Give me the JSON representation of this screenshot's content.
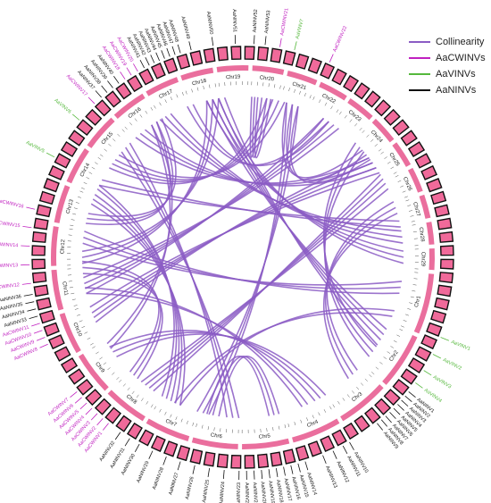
{
  "colors": {
    "collinearity": "#8b5cc4",
    "cwinv": "#c020c0",
    "vinv": "#55b83c",
    "ninv": "#111111",
    "chr_band": "#ea6e9d",
    "tile_fill": "#f06a9a",
    "tile_stroke": "#111111"
  },
  "legend": [
    {
      "label": "Collinearity",
      "color": "#8b5cc4"
    },
    {
      "label": "AaCWINVs",
      "color": "#c020c0"
    },
    {
      "label": "AaVINVs",
      "color": "#55b83c"
    },
    {
      "label": "AaNINVs",
      "color": "#111111"
    }
  ],
  "chromosomes": [
    {
      "name": "Chr1",
      "size": 108
    },
    {
      "name": "Chr2",
      "size": 100
    },
    {
      "name": "Chr3",
      "size": 92
    },
    {
      "name": "Chr4",
      "size": 88
    },
    {
      "name": "Chr5",
      "size": 84
    },
    {
      "name": "Chr6",
      "size": 82
    },
    {
      "name": "Chr7",
      "size": 80
    },
    {
      "name": "Chr8",
      "size": 78
    },
    {
      "name": "Chr9",
      "size": 76
    },
    {
      "name": "Chr10",
      "size": 74
    },
    {
      "name": "Chr11",
      "size": 72
    },
    {
      "name": "Chr12",
      "size": 70
    },
    {
      "name": "Chr13",
      "size": 68
    },
    {
      "name": "Chr14",
      "size": 66
    },
    {
      "name": "Chr15",
      "size": 64
    },
    {
      "name": "Chr16",
      "size": 62
    },
    {
      "name": "Chr17",
      "size": 60
    },
    {
      "name": "Chr18",
      "size": 58
    },
    {
      "name": "Chr19",
      "size": 56
    },
    {
      "name": "Chr20",
      "size": 56
    },
    {
      "name": "Chr21",
      "size": 54
    },
    {
      "name": "Chr22",
      "size": 52
    },
    {
      "name": "Chr23",
      "size": 50
    },
    {
      "name": "Chr24",
      "size": 48
    },
    {
      "name": "Chr25",
      "size": 46
    },
    {
      "name": "Chr26",
      "size": 44
    },
    {
      "name": "Chr27",
      "size": 42
    },
    {
      "name": "Chr28",
      "size": 40
    },
    {
      "name": "Chr29",
      "size": 38
    }
  ],
  "genes": [
    {
      "name": "AaVINV1",
      "type": "vinv",
      "angle": 112
    },
    {
      "name": "AaVINV2",
      "type": "vinv",
      "angle": 117
    },
    {
      "name": "AaVINV3",
      "type": "vinv",
      "angle": 122
    },
    {
      "name": "AaVINV4",
      "type": "vinv",
      "angle": 126
    },
    {
      "name": "AaNINV1",
      "type": "ninv",
      "angle": 129
    },
    {
      "name": "AaNINV2",
      "type": "ninv",
      "angle": 130.5
    },
    {
      "name": "AaNINV3",
      "type": "ninv",
      "angle": 132
    },
    {
      "name": "AaNINV4",
      "type": "ninv",
      "angle": 133.5
    },
    {
      "name": "AaNINV5",
      "type": "ninv",
      "angle": 135
    },
    {
      "name": "AaNINV6",
      "type": "ninv",
      "angle": 136.5
    },
    {
      "name": "AaNINV7",
      "type": "ninv",
      "angle": 138
    },
    {
      "name": "AaNINV8",
      "type": "ninv",
      "angle": 139.5
    },
    {
      "name": "AaNINV9",
      "type": "ninv",
      "angle": 141
    },
    {
      "name": "AaNINV10",
      "type": "ninv",
      "angle": 150
    },
    {
      "name": "AaNINV11",
      "type": "ninv",
      "angle": 152
    },
    {
      "name": "AaNINV12",
      "type": "ninv",
      "angle": 155
    },
    {
      "name": "AaNINV13",
      "type": "ninv",
      "angle": 158
    },
    {
      "name": "AaNINV14",
      "type": "ninv",
      "angle": 163
    },
    {
      "name": "AaNINV15",
      "type": "ninv",
      "angle": 165
    },
    {
      "name": "AaNINV16",
      "type": "ninv",
      "angle": 167
    },
    {
      "name": "AaNINV17",
      "type": "ninv",
      "angle": 169
    },
    {
      "name": "AaNINV18",
      "type": "ninv",
      "angle": 171
    },
    {
      "name": "AaNINV19",
      "type": "ninv",
      "angle": 173
    },
    {
      "name": "AaNINV20",
      "type": "ninv",
      "angle": 175
    },
    {
      "name": "AaNINV21",
      "type": "ninv",
      "angle": 177
    },
    {
      "name": "AaNINV22",
      "type": "ninv",
      "angle": 179
    },
    {
      "name": "AaNINV23",
      "type": "ninv",
      "angle": 181
    },
    {
      "name": "AaNINV24",
      "type": "ninv",
      "angle": 185
    },
    {
      "name": "AaNINV25",
      "type": "ninv",
      "angle": 189
    },
    {
      "name": "AaNINV26",
      "type": "ninv",
      "angle": 193
    },
    {
      "name": "AaNINV27",
      "type": "ninv",
      "angle": 197
    },
    {
      "name": "AaNINV28",
      "type": "ninv",
      "angle": 201
    },
    {
      "name": "AaNINV29",
      "type": "ninv",
      "angle": 205
    },
    {
      "name": "AaNINV30",
      "type": "ninv",
      "angle": 209
    },
    {
      "name": "AaNINV31",
      "type": "ninv",
      "angle": 212
    },
    {
      "name": "AaNINV32",
      "type": "ninv",
      "angle": 215
    },
    {
      "name": "AaCWINV1",
      "type": "cwinv",
      "angle": 219
    },
    {
      "name": "AaCWINV2",
      "type": "cwinv",
      "angle": 221
    },
    {
      "name": "AaCWINV3",
      "type": "cwinv",
      "angle": 223
    },
    {
      "name": "AaCWINV4",
      "type": "cwinv",
      "angle": 225
    },
    {
      "name": "AaCWINV5",
      "type": "cwinv",
      "angle": 227
    },
    {
      "name": "AaCWINV6",
      "type": "cwinv",
      "angle": 229
    },
    {
      "name": "AaCWINV7",
      "type": "cwinv",
      "angle": 231
    },
    {
      "name": "AaCWINV8",
      "type": "cwinv",
      "angle": 246
    },
    {
      "name": "AaCWINV9",
      "type": "cwinv",
      "angle": 248
    },
    {
      "name": "AaCWINV10",
      "type": "cwinv",
      "angle": 250
    },
    {
      "name": "AaCWINV11",
      "type": "cwinv",
      "angle": 252
    },
    {
      "name": "AaNINV33",
      "type": "ninv",
      "angle": 254
    },
    {
      "name": "AaNINV34",
      "type": "ninv",
      "angle": 256
    },
    {
      "name": "AaNINV35",
      "type": "ninv",
      "angle": 258
    },
    {
      "name": "AaNINV36",
      "type": "ninv",
      "angle": 260
    },
    {
      "name": "AaCWINV12",
      "type": "cwinv",
      "angle": 263
    },
    {
      "name": "AaCWINV13",
      "type": "cwinv",
      "angle": 268
    },
    {
      "name": "AaCWINV14",
      "type": "cwinv",
      "angle": 273
    },
    {
      "name": "AaCWINV15",
      "type": "cwinv",
      "angle": 278
    },
    {
      "name": "AaCWINV16",
      "type": "cwinv",
      "angle": 283
    },
    {
      "name": "AaVINV5",
      "type": "vinv",
      "angle": 298
    },
    {
      "name": "AaVINV6",
      "type": "vinv",
      "angle": 310
    },
    {
      "name": "AaCWINV17",
      "type": "cwinv",
      "angle": 316
    },
    {
      "name": "AaNINV37",
      "type": "ninv",
      "angle": 318.5
    },
    {
      "name": "AaNINV38",
      "type": "ninv",
      "angle": 320.5
    },
    {
      "name": "AaNINV39",
      "type": "ninv",
      "angle": 322.5
    },
    {
      "name": "AaNINV40",
      "type": "ninv",
      "angle": 324.5
    },
    {
      "name": "AaCWINV18",
      "type": "cwinv",
      "angle": 326.5
    },
    {
      "name": "AaCWINV19",
      "type": "cwinv",
      "angle": 328.5
    },
    {
      "name": "AaCWINV20",
      "type": "cwinv",
      "angle": 330.5
    },
    {
      "name": "AaNINV41",
      "type": "ninv",
      "angle": 332.5
    },
    {
      "name": "AaNINV42",
      "type": "ninv",
      "angle": 334
    },
    {
      "name": "AaNINV43",
      "type": "ninv",
      "angle": 335.5
    },
    {
      "name": "AaNINV44",
      "type": "ninv",
      "angle": 337
    },
    {
      "name": "AaNINV45",
      "type": "ninv",
      "angle": 338.5
    },
    {
      "name": "AaNINV46",
      "type": "ninv",
      "angle": 340
    },
    {
      "name": "AaNINV47",
      "type": "ninv",
      "angle": 341.5
    },
    {
      "name": "AaNINV48",
      "type": "ninv",
      "angle": 343
    },
    {
      "name": "AaNINV49",
      "type": "ninv",
      "angle": 346
    },
    {
      "name": "AaNINV50",
      "type": "ninv",
      "angle": 352
    },
    {
      "name": "AaNINV51",
      "type": "ninv",
      "angle": 358
    },
    {
      "name": "AaNINV52",
      "type": "ninv",
      "angle": 3
    },
    {
      "name": "AaNINV53",
      "type": "ninv",
      "angle": 6
    },
    {
      "name": "AaCWINV21",
      "type": "cwinv",
      "angle": 10
    },
    {
      "name": "AaVINV7",
      "type": "vinv",
      "angle": 14
    },
    {
      "name": "AaCWINV22",
      "type": "cwinv",
      "angle": 24
    }
  ],
  "links": [
    [
      0.3,
      0.54
    ],
    [
      0.305,
      0.545
    ],
    [
      0.31,
      0.55
    ],
    [
      0.315,
      0.556
    ],
    [
      0.32,
      0.56
    ],
    [
      0.33,
      0.9
    ],
    [
      0.335,
      0.905
    ],
    [
      0.34,
      0.91
    ],
    [
      0.345,
      0.916
    ],
    [
      0.06,
      0.7
    ],
    [
      0.066,
      0.706
    ],
    [
      0.072,
      0.712
    ],
    [
      0.078,
      0.718
    ],
    [
      0.42,
      0.88
    ],
    [
      0.425,
      0.886
    ],
    [
      0.43,
      0.892
    ],
    [
      0.436,
      0.898
    ],
    [
      0.7,
      0.98
    ],
    [
      0.706,
      0.986
    ],
    [
      0.712,
      0.992
    ],
    [
      0.745,
      0.755
    ],
    [
      0.748,
      0.76
    ],
    [
      0.751,
      0.764
    ],
    [
      0.45,
      0.82
    ],
    [
      0.455,
      0.826
    ],
    [
      0.46,
      0.832
    ],
    [
      0.466,
      0.838
    ],
    [
      0.15,
      0.38
    ],
    [
      0.156,
      0.386
    ],
    [
      0.162,
      0.392
    ],
    [
      0.52,
      0.64
    ],
    [
      0.525,
      0.646
    ],
    [
      0.53,
      0.652
    ],
    [
      0.58,
      0.76
    ],
    [
      0.585,
      0.766
    ],
    [
      0.59,
      0.772
    ],
    [
      0.596,
      0.778
    ],
    [
      0.62,
      0.88
    ],
    [
      0.626,
      0.886
    ],
    [
      0.632,
      0.892
    ],
    [
      0.01,
      0.5
    ],
    [
      0.016,
      0.506
    ],
    [
      0.022,
      0.512
    ],
    [
      0.2,
      0.26
    ],
    [
      0.205,
      0.266
    ],
    [
      0.21,
      0.272
    ],
    [
      0.48,
      0.7
    ],
    [
      0.486,
      0.706
    ],
    [
      0.492,
      0.712
    ],
    [
      0.08,
      0.86
    ],
    [
      0.086,
      0.866
    ],
    [
      0.092,
      0.872
    ],
    [
      0.35,
      0.47
    ],
    [
      0.355,
      0.476
    ],
    [
      0.36,
      0.482
    ],
    [
      0.65,
      0.96
    ],
    [
      0.656,
      0.966
    ],
    [
      0.662,
      0.972
    ],
    [
      0.24,
      0.6
    ],
    [
      0.246,
      0.606
    ],
    [
      0.252,
      0.612
    ],
    [
      0.78,
      0.87
    ],
    [
      0.786,
      0.876
    ],
    [
      0.792,
      0.882
    ],
    [
      0.11,
      0.93
    ],
    [
      0.116,
      0.936
    ],
    [
      0.122,
      0.942
    ],
    [
      0.27,
      0.78
    ],
    [
      0.276,
      0.786
    ],
    [
      0.282,
      0.792
    ],
    [
      0.39,
      0.64
    ],
    [
      0.396,
      0.646
    ],
    [
      0.56,
      0.95
    ],
    [
      0.566,
      0.956
    ],
    [
      0.17,
      0.45
    ],
    [
      0.176,
      0.456
    ],
    [
      0.04,
      0.3
    ],
    [
      0.046,
      0.306
    ],
    [
      0.68,
      0.82
    ],
    [
      0.686,
      0.826
    ]
  ]
}
